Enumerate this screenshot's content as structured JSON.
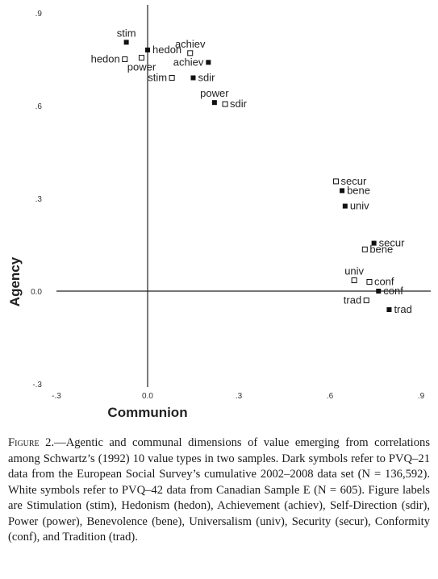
{
  "chart_data": {
    "type": "scatter",
    "xlabel": "Communion",
    "ylabel": "Agency",
    "xlim": [
      -0.3,
      0.9
    ],
    "ylim": [
      -0.3,
      0.9
    ],
    "x_ticks": [
      {
        "value": -0.3,
        "label": "-.3"
      },
      {
        "value": 0.0,
        "label": "0.0"
      },
      {
        "value": 0.3,
        "label": ".3"
      },
      {
        "value": 0.6,
        "label": ".6"
      },
      {
        "value": 0.9,
        "label": ".9"
      }
    ],
    "y_ticks": [
      {
        "value": -0.3,
        "label": "-.3"
      },
      {
        "value": 0.0,
        "label": "0.0"
      },
      {
        "value": 0.3,
        "label": ".3"
      },
      {
        "value": 0.6,
        "label": ".6"
      },
      {
        "value": 0.9,
        "label": ".9"
      }
    ],
    "grid": false,
    "series": [
      {
        "marker": "filled-square",
        "color": "#111111",
        "points": [
          {
            "label": "stim",
            "x": -0.07,
            "y": 0.805,
            "label_pos": "above"
          },
          {
            "label": "hedon",
            "x": 0.0,
            "y": 0.78,
            "label_pos": "right"
          },
          {
            "label": "achiev",
            "x": 0.2,
            "y": 0.74,
            "label_pos": "left"
          },
          {
            "label": "sdir",
            "x": 0.15,
            "y": 0.69,
            "label_pos": "right"
          },
          {
            "label": "power",
            "x": 0.22,
            "y": 0.61,
            "label_pos": "above"
          },
          {
            "label": "bene",
            "x": 0.64,
            "y": 0.325,
            "label_pos": "right"
          },
          {
            "label": "univ",
            "x": 0.65,
            "y": 0.275,
            "label_pos": "right"
          },
          {
            "label": "secur",
            "x": 0.745,
            "y": 0.155,
            "label_pos": "right"
          },
          {
            "label": "conf",
            "x": 0.76,
            "y": 0.0,
            "label_pos": "right"
          },
          {
            "label": "trad",
            "x": 0.795,
            "y": -0.06,
            "label_pos": "right"
          }
        ]
      },
      {
        "marker": "open-square",
        "color": "#111111",
        "points": [
          {
            "label": "hedon",
            "x": -0.075,
            "y": 0.75,
            "label_pos": "left"
          },
          {
            "label": "power",
            "x": -0.02,
            "y": 0.755,
            "label_pos": "below"
          },
          {
            "label": "achiev",
            "x": 0.14,
            "y": 0.77,
            "label_pos": "above"
          },
          {
            "label": "stim",
            "x": 0.08,
            "y": 0.69,
            "label_pos": "left"
          },
          {
            "label": "sdir",
            "x": 0.255,
            "y": 0.605,
            "label_pos": "right"
          },
          {
            "label": "secur",
            "x": 0.62,
            "y": 0.355,
            "label_pos": "right"
          },
          {
            "label": "bene",
            "x": 0.715,
            "y": 0.135,
            "label_pos": "right"
          },
          {
            "label": "univ",
            "x": 0.68,
            "y": 0.035,
            "label_pos": "above"
          },
          {
            "label": "conf",
            "x": 0.73,
            "y": 0.03,
            "label_pos": "right"
          },
          {
            "label": "trad",
            "x": 0.72,
            "y": -0.03,
            "label_pos": "left"
          }
        ]
      }
    ]
  },
  "caption": {
    "label": "Figure 2.",
    "text": "—Agentic and communal dimensions of value emerging from correlations among Schwartz’s (1992) 10 value types in two samples. Dark symbols refer to PVQ–21 data from the European Social Survey’s cumulative 2002–2008 data set (N = 136,592). White symbols refer to PVQ–42 data from Canadian Sample E (N = 605). Figure labels are Stimulation (stim), Hedonism (hedon), Achievement (achiev), Self-Direction (sdir), Power (power), Benevolence (bene), Universalism (univ), Security (secur), Conformity (conf), and Tradition (trad)."
  }
}
